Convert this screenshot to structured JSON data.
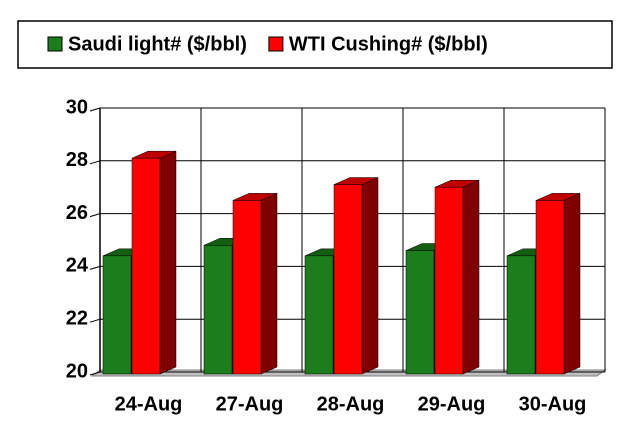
{
  "chart_data": {
    "type": "bar3d",
    "categories": [
      "24-Aug",
      "27-Aug",
      "28-Aug",
      "29-Aug",
      "30-Aug"
    ],
    "series": [
      {
        "name": "Saudi light# ($/bbl)",
        "color": "#1b7d1b",
        "values": [
          24.4,
          24.8,
          24.4,
          24.6,
          24.4
        ]
      },
      {
        "name": "WTI Cushing# ($/bbl)",
        "color": "#ff0000",
        "values": [
          28.1,
          26.5,
          27.1,
          27.0,
          26.5
        ]
      }
    ],
    "ylim": [
      20,
      30
    ],
    "yticks": [
      20,
      22,
      24,
      26,
      28,
      30
    ],
    "grid": true,
    "legend": "top"
  }
}
